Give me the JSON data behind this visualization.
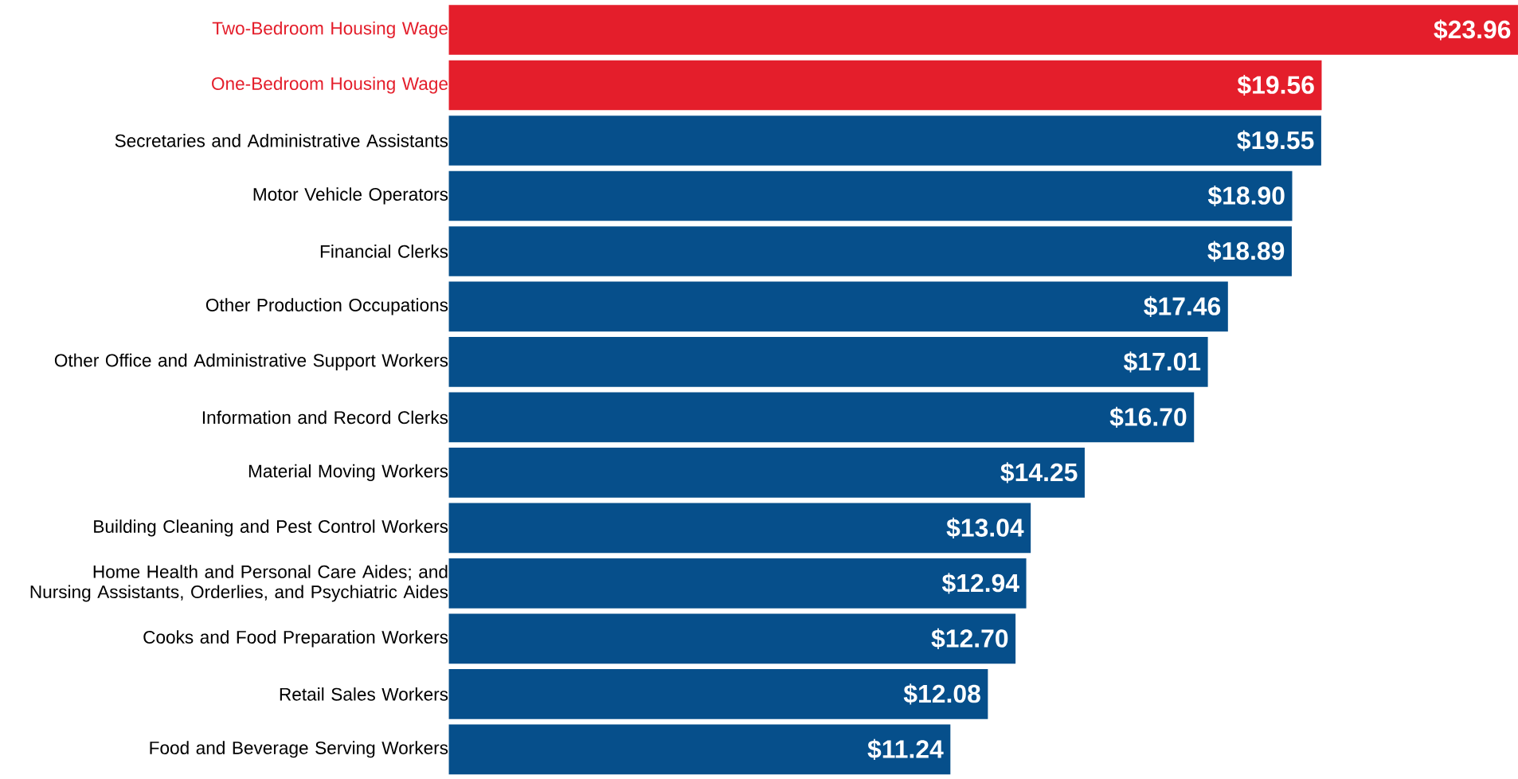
{
  "chart_data": {
    "type": "bar",
    "orientation": "horizontal",
    "categories": [
      "Two-Bedroom Housing Wage",
      "One-Bedroom Housing Wage",
      "Secretaries and Administrative Assistants",
      "Motor Vehicle Operators",
      "Financial Clerks",
      "Other Production Occupations",
      "Other Office and Administrative Support Workers",
      "Information and Record Clerks",
      "Material Moving Workers",
      "Building Cleaning and Pest Control Workers",
      "Home Health and Personal Care Aides; and Nursing Assistants, Orderlies, and Psychiatric Aides",
      "Cooks and Food Preparation Workers",
      "Retail Sales Workers",
      "Food and Beverage Serving Workers"
    ],
    "values": [
      23.96,
      19.56,
      19.55,
      18.9,
      18.89,
      17.46,
      17.01,
      16.7,
      14.25,
      13.04,
      12.94,
      12.7,
      12.08,
      11.24
    ],
    "colors": [
      "#e41e2b",
      "#e41e2b",
      "#064f8b",
      "#064f8b",
      "#064f8b",
      "#064f8b",
      "#064f8b",
      "#064f8b",
      "#064f8b",
      "#064f8b",
      "#064f8b",
      "#064f8b",
      "#064f8b",
      "#064f8b"
    ],
    "value_labels": [
      "$23.96",
      "$19.56",
      "$19.55",
      "$18.90",
      "$18.89",
      "$17.46",
      "$17.01",
      "$16.70",
      "$14.25",
      "$13.04",
      "$12.94",
      "$12.70",
      "$12.08",
      "$11.24"
    ]
  }
}
